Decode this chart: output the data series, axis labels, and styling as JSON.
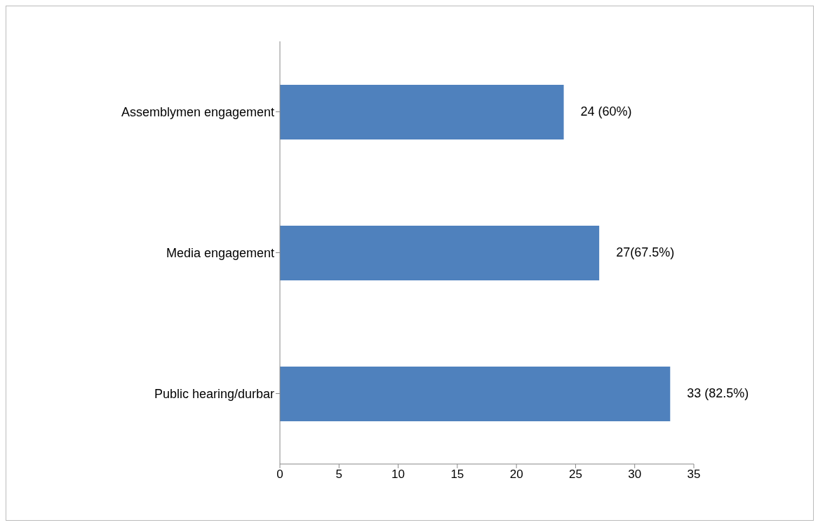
{
  "chart_data": {
    "type": "bar",
    "orientation": "horizontal",
    "categories": [
      "Assemblymen engagement",
      "Media engagement",
      "Public hearing/durbar"
    ],
    "values": [
      24,
      27,
      33
    ],
    "value_labels": [
      "24 (60%)",
      "27(67.5%)",
      "33 (82.5%)"
    ],
    "color": "#4f81bd",
    "xlim": [
      0,
      35
    ],
    "xticks": [
      0,
      5,
      10,
      15,
      20,
      25,
      30,
      35
    ],
    "grid": false,
    "legend": false
  }
}
